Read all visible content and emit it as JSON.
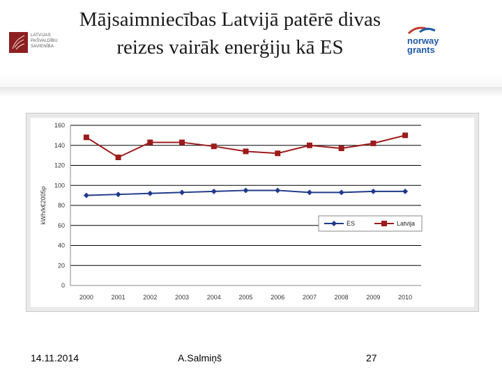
{
  "slide": {
    "title_line1": "Mājsaimniecības Latvijā patērē divas",
    "title_line2": "reizes vairāk enerģiju kā ES",
    "logo_left_lines": [
      "LATVIJAS",
      "PAŠVALDĪBU",
      "SAVIENĪBA"
    ],
    "logo_right_line1": "norway",
    "logo_right_line2": "grants",
    "footer_date": "14.11.2014",
    "footer_author": "A.Salmiņš",
    "footer_page": "27"
  },
  "colors": {
    "es": "#1f3a8a",
    "latvija": "#9c1c1c",
    "grid": "#000000",
    "brand_red": "#8c1f1f",
    "brand_blue": "#1f5aa6"
  },
  "chart_data": {
    "type": "line",
    "title": "",
    "xlabel": "",
    "ylabel": "kWh/k€2005p",
    "categories": [
      "2000",
      "2001",
      "2002",
      "2003",
      "2004",
      "2005",
      "2006",
      "2007",
      "2008",
      "2009",
      "2010"
    ],
    "ylim": [
      0,
      160
    ],
    "yticks": [
      0,
      20,
      40,
      60,
      80,
      100,
      120,
      140,
      160
    ],
    "grid": true,
    "legend": "right-middle",
    "series": [
      {
        "name": "ES",
        "marker": "diamond",
        "values": [
          90,
          91,
          92,
          93,
          94,
          95,
          95,
          93,
          93,
          94,
          94
        ]
      },
      {
        "name": "Latvija",
        "marker": "square",
        "values": [
          148,
          128,
          143,
          143,
          139,
          134,
          132,
          140,
          137,
          142,
          150
        ]
      }
    ]
  }
}
